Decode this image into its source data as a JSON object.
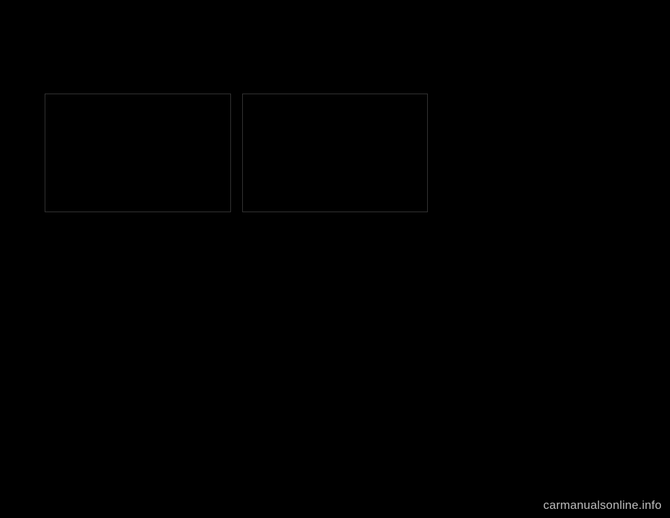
{
  "header": {
    "model_line": "",
    "page_ref_top": ""
  },
  "title": "",
  "figures": {
    "left": {
      "label": ""
    },
    "right": {
      "label": ""
    }
  },
  "col1": {
    "p1": "",
    "p2": ""
  },
  "col2": {
    "p1": "",
    "p2": ""
  },
  "col3": {
    "p1": "",
    "subhead": "",
    "p2": "",
    "p3": ""
  },
  "footer": {
    "crumb": "",
    "page_number": ""
  },
  "watermark": "carmanualsonline.info"
}
